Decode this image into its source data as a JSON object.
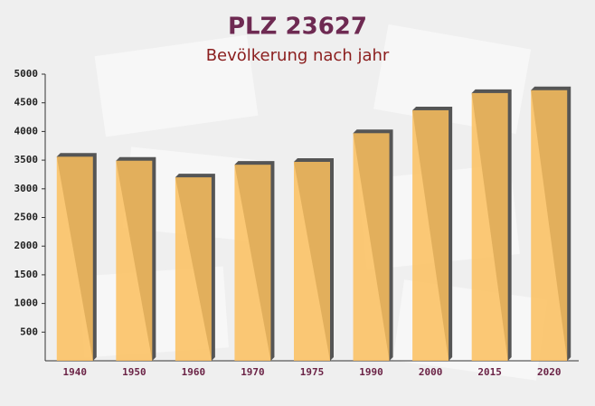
{
  "chart_data": {
    "type": "bar",
    "title": "PLZ 23627",
    "subtitle": "Bevölkerung nach jahr",
    "categories": [
      "1940",
      "1950",
      "1960",
      "1970",
      "1975",
      "1990",
      "2000",
      "2015",
      "2020"
    ],
    "values": [
      3560,
      3490,
      3200,
      3420,
      3470,
      3970,
      4370,
      4670,
      4720
    ],
    "color": "#fbc05e",
    "ylim": [
      0,
      5000
    ],
    "yticks": [
      500,
      1000,
      1500,
      2000,
      2500,
      3000,
      3500,
      4000,
      4500,
      5000
    ],
    "grid": false
  }
}
